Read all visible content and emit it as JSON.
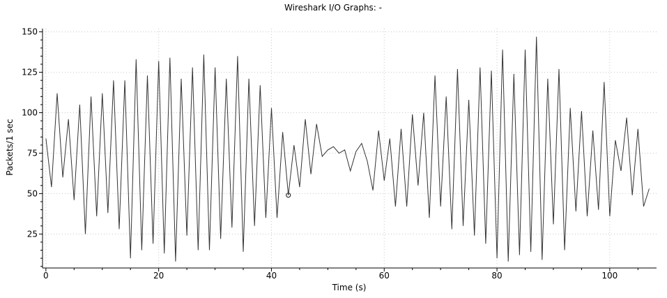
{
  "chart_data": {
    "type": "line",
    "title": "Wireshark I/O Graphs: -",
    "xlabel": "Time (s)",
    "ylabel": "Packets/1 sec",
    "xlim": [
      -0.6,
      108.3
    ],
    "ylim": [
      4,
      152
    ],
    "x_ticks": [
      0,
      20,
      40,
      60,
      80,
      100
    ],
    "x_tick_labels": [
      "0",
      "20",
      "40",
      "60",
      "80",
      "100"
    ],
    "y_ticks": [
      25,
      50,
      75,
      100,
      125,
      150
    ],
    "y_tick_labels": [
      "25",
      "50",
      "75",
      "100",
      "125",
      "150"
    ],
    "grid": true,
    "series": [
      {
        "color": "#333333",
        "x": [
          0,
          1,
          2,
          3,
          4,
          5,
          6,
          7,
          8,
          9,
          10,
          11,
          12,
          13,
          14,
          15,
          16,
          17,
          18,
          19,
          20,
          21,
          22,
          23,
          24,
          25,
          26,
          27,
          28,
          29,
          30,
          31,
          32,
          33,
          34,
          35,
          36,
          37,
          38,
          39,
          40,
          41,
          42,
          43,
          44,
          45,
          46,
          47,
          48,
          49,
          50,
          51,
          52,
          53,
          54,
          55,
          56,
          57,
          58,
          59,
          60,
          61,
          62,
          63,
          64,
          65,
          66,
          67,
          68,
          69,
          70,
          71,
          72,
          73,
          74,
          75,
          76,
          77,
          78,
          79,
          80,
          81,
          82,
          83,
          84,
          85,
          86,
          87,
          88,
          89,
          90,
          91,
          92,
          93,
          94,
          95,
          96,
          97,
          98,
          99,
          100,
          101,
          102,
          103,
          104,
          105,
          106,
          107
        ],
        "y": [
          84,
          54,
          112,
          60,
          96,
          46,
          105,
          25,
          110,
          36,
          112,
          38,
          120,
          28,
          120,
          10,
          133,
          15,
          123,
          19,
          132,
          13,
          134,
          8,
          121,
          24,
          128,
          15,
          136,
          15,
          128,
          22,
          121,
          29,
          135,
          14,
          121,
          30,
          117,
          35,
          103,
          35,
          88,
          49,
          80,
          54,
          96,
          62,
          93,
          73,
          77,
          79,
          75,
          77,
          64,
          76,
          81,
          70,
          52,
          89,
          58,
          84,
          42,
          90,
          42,
          99,
          55,
          100,
          35,
          123,
          42,
          110,
          28,
          127,
          30,
          108,
          24,
          128,
          19,
          126,
          10,
          139,
          8,
          124,
          12,
          139,
          14,
          147,
          9,
          121,
          31,
          127,
          15,
          103,
          39,
          101,
          36,
          89,
          40,
          119,
          36,
          83,
          64,
          97,
          49,
          90,
          42,
          53
        ]
      }
    ],
    "marker": {
      "x": 43,
      "y": 49
    }
  }
}
